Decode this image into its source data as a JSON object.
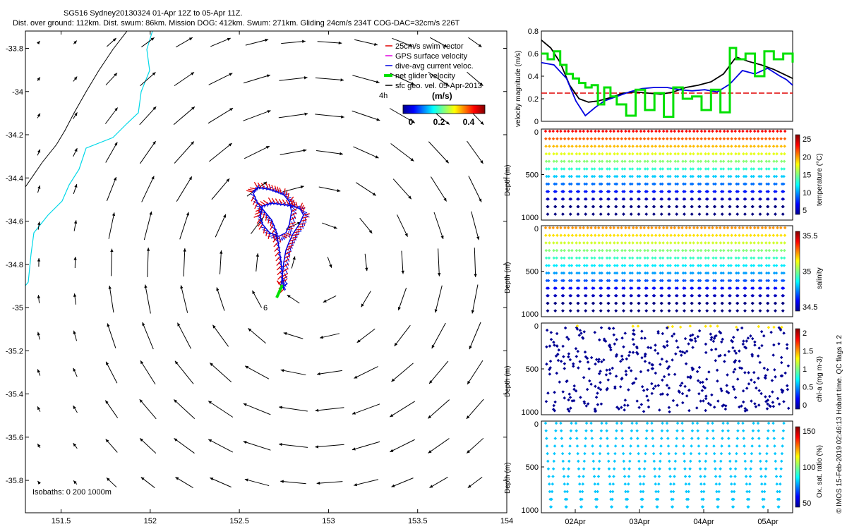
{
  "header": {
    "line1": "SG516 Sydney20130324 01-Apr 12Z to 05-Apr 11Z.",
    "line2": "Dist. over ground: 112km. Dist. swum: 86km. Mission DOG: 412km. Swum: 271km. Gliding 24cm/s 234T COG-DAC=32cm/s 226T"
  },
  "credit": "© IMOS 15-Feb-2019 02:46:13 Hobart time. QC flags 1  2",
  "colors": {
    "coast": "#00d8e8",
    "isobath": "#000000",
    "swim": "#e00000",
    "gps": "#e000e0",
    "dac": "#0000e0",
    "net": "#00e000",
    "threshold": "#e00000"
  },
  "chart_data": [
    {
      "type": "scatter",
      "title": "",
      "xlabel": "",
      "ylabel": "",
      "xlim": [
        151.3,
        154
      ],
      "ylim": [
        -35.95,
        -33.72
      ],
      "xticks": [
        151.5,
        152,
        152.5,
        153,
        153.5,
        154
      ],
      "xticklabels": [
        "151.5",
        "152",
        "152.5",
        "153",
        "153.5",
        "154"
      ],
      "yticks": [
        -33.8,
        -34,
        -34.2,
        -34.4,
        -34.6,
        -34.8,
        -35,
        -35.2,
        -35.4,
        -35.6,
        -35.8
      ],
      "yticklabels": [
        "-33.8",
        "-34",
        "-34.2",
        "-34.4",
        "-34.6",
        "-34.8",
        "-35",
        "-35.2",
        "-35.4",
        "-35.6",
        "-35.8"
      ],
      "legend": {
        "position": "top-right",
        "entries": [
          "25cm/s swim vector",
          "GPS surface velocity",
          "dive-avg current veloc.",
          "net glider velocity",
          "sfc geo. vel. 05-Apr-2013"
        ]
      },
      "isobaths_label": "Isobaths: 0   200   1000m",
      "colorbar": {
        "title": "(m/s)",
        "extra": "4h",
        "ticks": [
          "0",
          "0.2",
          "0.4"
        ],
        "range": [
          0,
          0.5
        ]
      },
      "track_labels": [
        "6"
      ],
      "grid": false
    },
    {
      "type": "line",
      "title": "",
      "xlabel": "",
      "ylabel": "velocity magnitude (m/s)",
      "xlim": [
        0,
        4
      ],
      "ylim": [
        0,
        0.8
      ],
      "yticklabels": [
        "0",
        "0.2",
        "0.4",
        "0.6",
        "0.8"
      ],
      "threshold": 0.25,
      "series": [
        {
          "color": "black",
          "x": [
            0,
            0.15,
            0.3,
            0.45,
            0.6,
            0.75,
            0.9,
            1.1,
            1.3,
            1.5,
            1.7,
            1.9,
            2.1,
            2.3,
            2.5,
            2.7,
            2.9,
            3.1,
            3.3,
            3.5,
            3.7,
            3.85,
            4.0
          ],
          "y": [
            0.72,
            0.65,
            0.52,
            0.32,
            0.2,
            0.17,
            0.18,
            0.21,
            0.25,
            0.26,
            0.25,
            0.24,
            0.26,
            0.3,
            0.32,
            0.35,
            0.42,
            0.57,
            0.53,
            0.5,
            0.46,
            0.42,
            0.38
          ]
        },
        {
          "color": "blue",
          "x": [
            0,
            0.2,
            0.4,
            0.55,
            0.7,
            0.85,
            1.0,
            1.2,
            1.4,
            1.6,
            1.8,
            2.0,
            2.2,
            2.4,
            2.6,
            2.8,
            3.0,
            3.2,
            3.4,
            3.6,
            3.8,
            3.9,
            4.0
          ],
          "y": [
            0.52,
            0.5,
            0.38,
            0.18,
            0.05,
            0.12,
            0.18,
            0.22,
            0.26,
            0.29,
            0.3,
            0.3,
            0.28,
            0.27,
            0.28,
            0.26,
            0.33,
            0.45,
            0.42,
            0.47,
            0.4,
            0.37,
            0.32
          ]
        },
        {
          "color": "green",
          "x": [
            0,
            0.1,
            0.2,
            0.3,
            0.4,
            0.5,
            0.6,
            0.7,
            0.8,
            0.9,
            1.0,
            1.1,
            1.2,
            1.35,
            1.5,
            1.65,
            1.8,
            1.95,
            2.1,
            2.25,
            2.4,
            2.55,
            2.7,
            2.85,
            3.0,
            3.1,
            3.25,
            3.4,
            3.55,
            3.7,
            3.85,
            4.0
          ],
          "y": [
            0.6,
            0.55,
            0.62,
            0.5,
            0.42,
            0.38,
            0.34,
            0.3,
            0.32,
            0.15,
            0.3,
            0.22,
            0.15,
            0.05,
            0.28,
            0.1,
            0.25,
            0.04,
            0.3,
            0.2,
            0.22,
            0.1,
            0.28,
            0.08,
            0.65,
            0.55,
            0.6,
            0.4,
            0.62,
            0.55,
            0.6,
            0.52
          ]
        }
      ]
    },
    {
      "type": "scatter",
      "title": "",
      "xlabel": "",
      "ylabel": "Depth (m)",
      "colorbar_label": "temperature (°C)",
      "colorbar_ticks": [
        "5",
        "10",
        "15",
        "20",
        "25"
      ],
      "yticklabels": [
        "0",
        "500",
        "1000"
      ],
      "profiles": 32
    },
    {
      "type": "scatter",
      "title": "",
      "xlabel": "",
      "ylabel": "Depth (m)",
      "colorbar_label": "salinity",
      "colorbar_ticks": [
        "34.5",
        "35",
        "35.5"
      ],
      "yticklabels": [
        "0",
        "500",
        "1000"
      ],
      "profiles": 32
    },
    {
      "type": "scatter",
      "title": "",
      "xlabel": "",
      "ylabel": "Depth (m)",
      "colorbar_label": "chl-a (mg m-3)",
      "colorbar_ticks": [
        "0",
        "0.5",
        "1",
        "1.5",
        "2"
      ],
      "yticklabels": [
        "0",
        "500",
        "1000"
      ],
      "profiles": 32
    },
    {
      "type": "scatter",
      "title": "",
      "xlabel": "",
      "ylabel": "Depth (m)",
      "colorbar_label": "Ox. sat. ratio (%)",
      "colorbar_ticks": [
        "50",
        "100",
        "150"
      ],
      "yticklabels": [
        "0",
        "500",
        "1000"
      ],
      "xticklabels": [
        "02Apr",
        "03Apr",
        "04Apr",
        "05Apr"
      ],
      "profiles": 16
    }
  ]
}
